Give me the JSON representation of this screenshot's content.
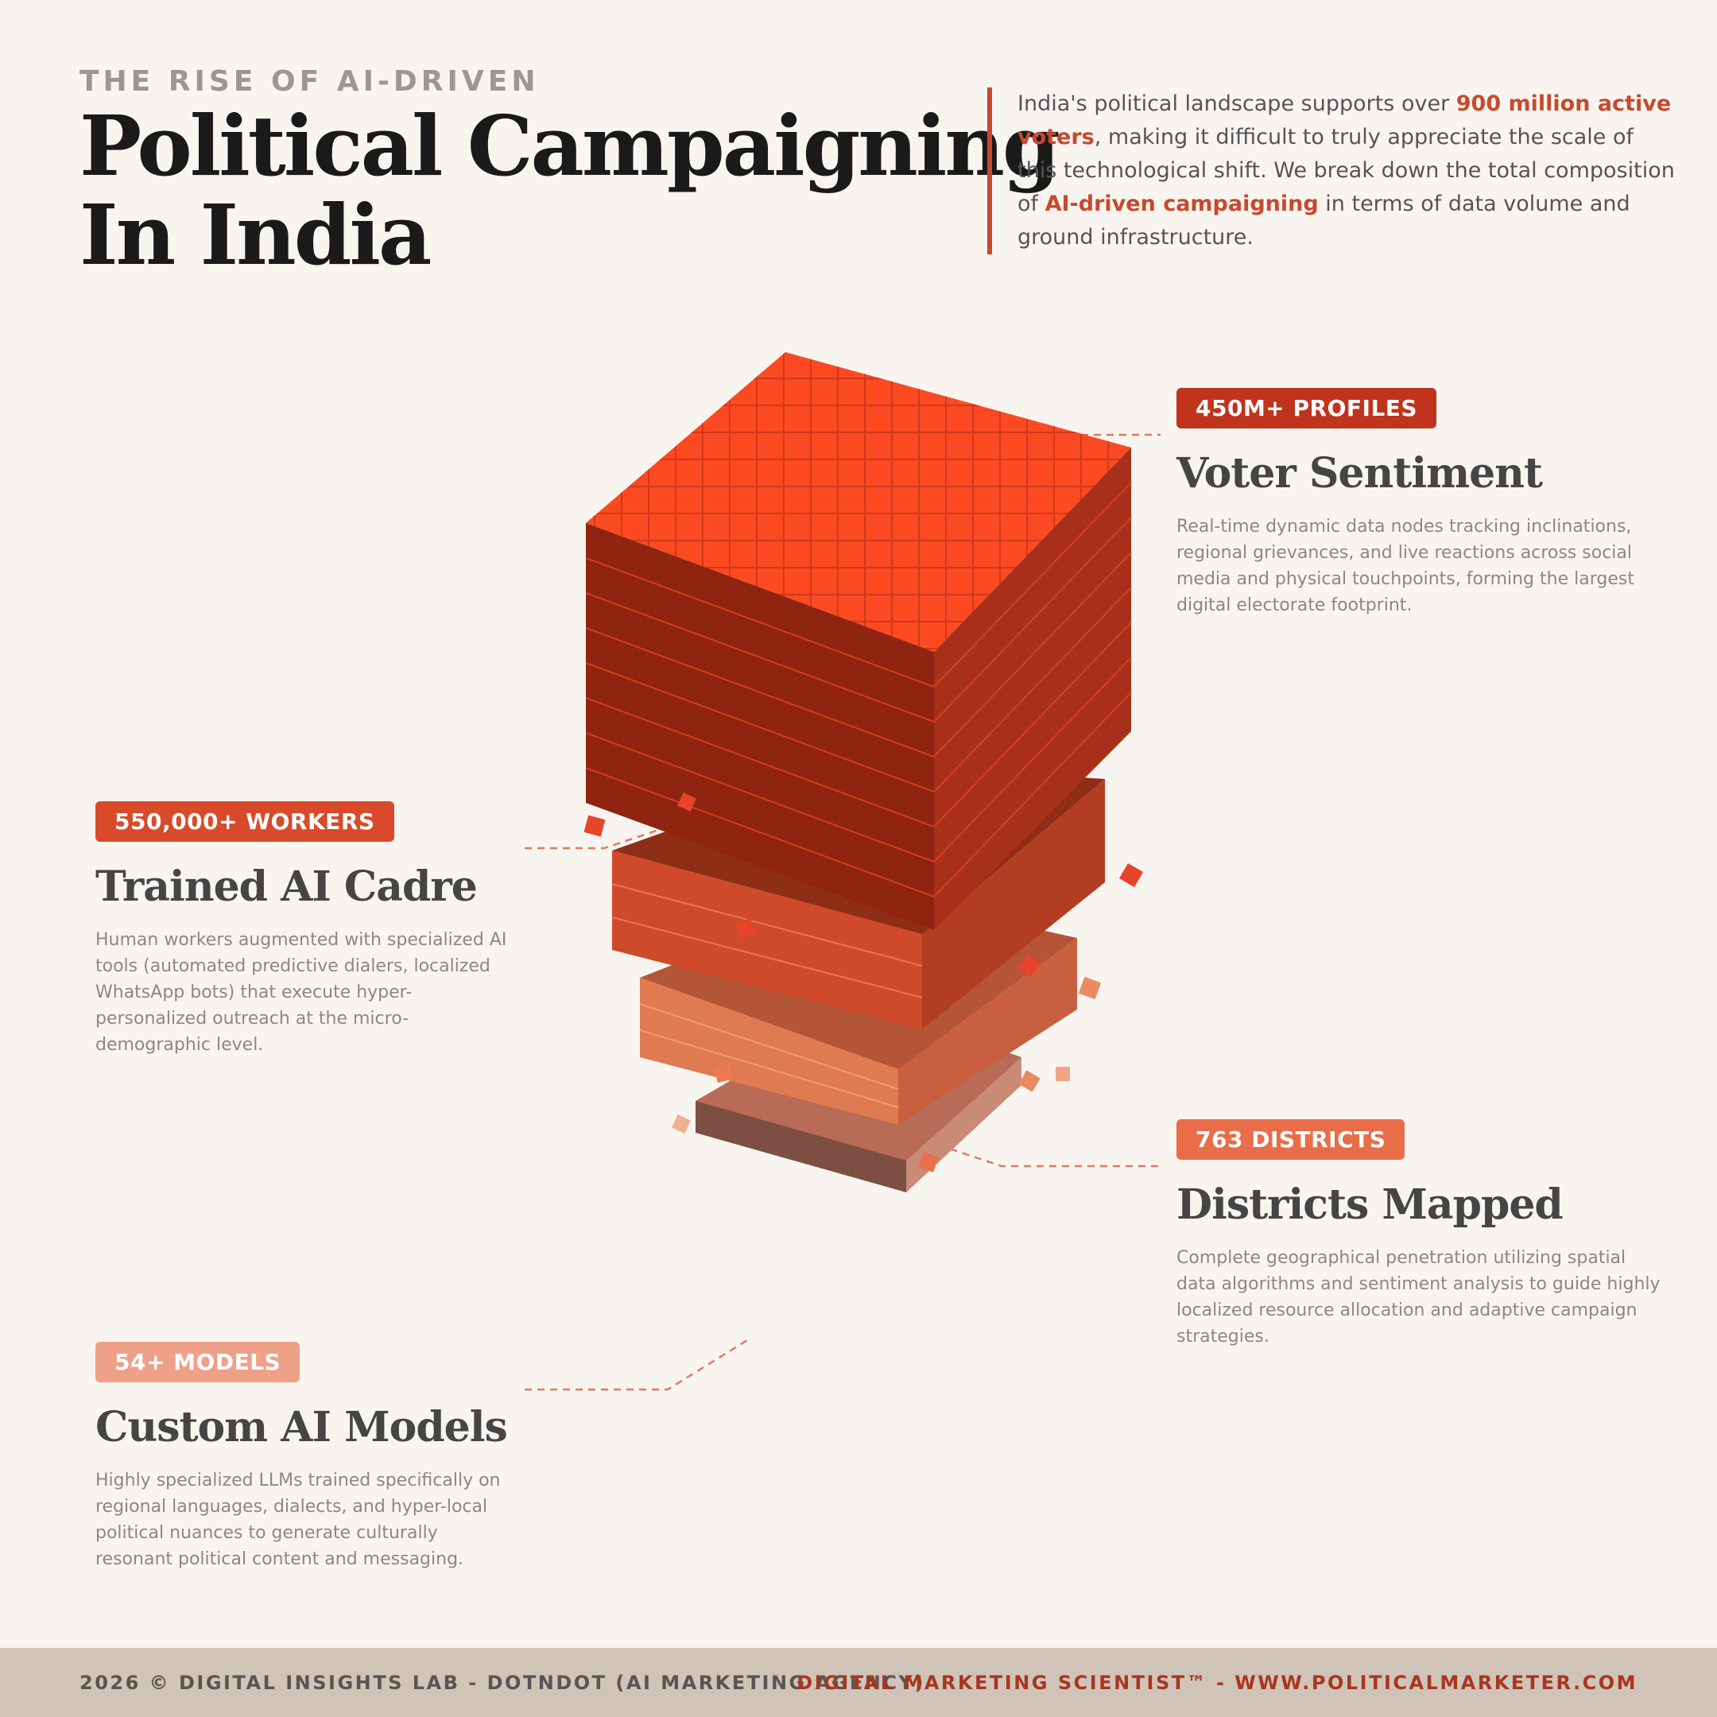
{
  "header": {
    "kicker": "THE RISE OF AI-DRIVEN",
    "title_line1": "Political Campaigning",
    "title_line2": "In India"
  },
  "intro": {
    "part1": "India's political landscape supports over ",
    "highlight1": "900 million active voters",
    "part2": ", making it difficult to truly appreciate the scale of this technological shift. We break down the total composition of ",
    "highlight2": "AI-driven campaigning",
    "part3": " in terms of data volume and ground infrastructure."
  },
  "blocks": {
    "voter": {
      "badge": "450M+ PROFILES",
      "title": "Voter Sentiment",
      "desc": "Real-time dynamic data nodes tracking inclinations, regional grievances, and live reactions across social media and physical touchpoints, forming the largest digital electorate footprint.",
      "color": "#c0331c"
    },
    "cadre": {
      "badge": "550,000+ WORKERS",
      "title": "Trained AI Cadre",
      "desc": "Human workers augmented with specialized AI tools (automated predictive dialers, localized WhatsApp bots) that execute hyper-personalized outreach at the micro-demographic level.",
      "color": "#d94a2a"
    },
    "districts": {
      "badge": "763 DISTRICTS",
      "title": "Districts Mapped",
      "desc": "Complete geographical penetration utilizing spatial data algorithms and sentiment analysis to guide highly localized resource allocation and adaptive campaign strategies.",
      "color": "#e86d48"
    },
    "models": {
      "badge": "54+ MODELS",
      "title": "Custom AI Models",
      "desc": "Highly specialized LLMs trained specifically on regional languages, dialects, and hyper-local political nuances to generate culturally resonant political content and messaging.",
      "color": "#eea089"
    }
  },
  "footer": {
    "left": "2026 © DIGITAL INSIGHTS LAB - DOTNDOT (AI MARKETING AGENCY)",
    "right": "DIGITAL MARKETING SCIENTIST™ - WWW.POLITICALMARKETER.COM"
  },
  "colors": {
    "accent": "#c9492c",
    "background": "#f8f5f1",
    "footer_bg": "#d0c4b9"
  }
}
